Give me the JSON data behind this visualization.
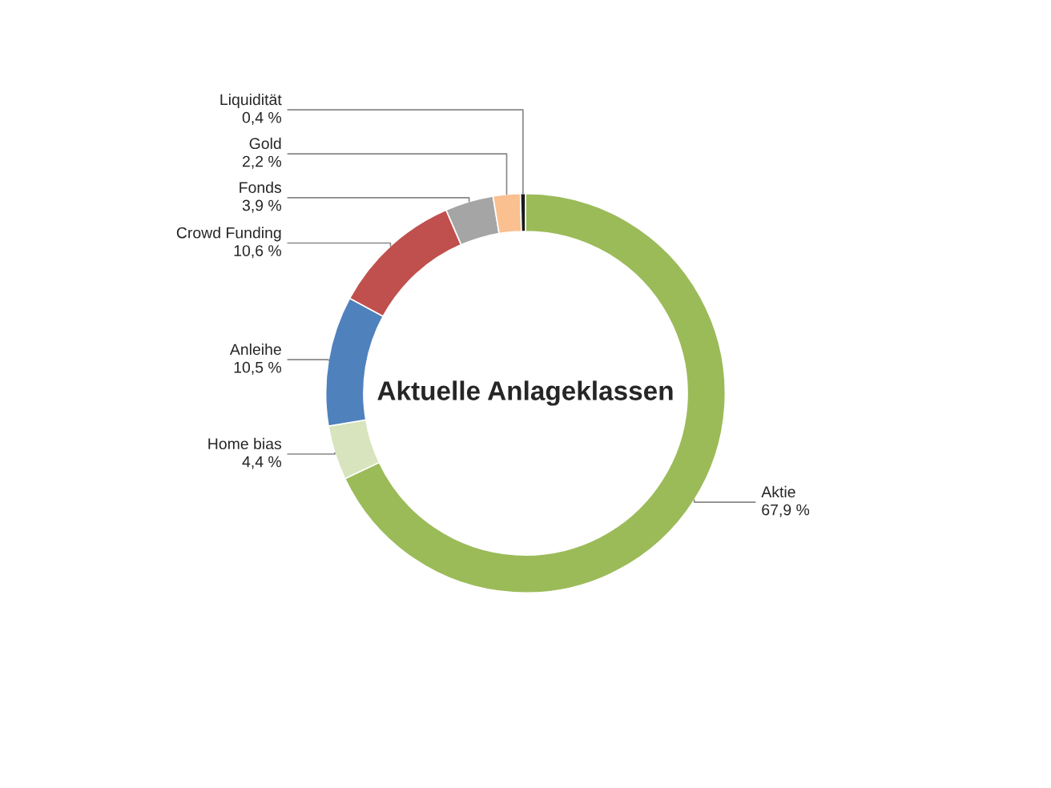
{
  "chart_data": {
    "type": "donut",
    "title": "Aktuelle Anlageklassen",
    "categories": [
      "Aktie",
      "Home bias",
      "Anleihe",
      "Crowd Funding",
      "Fonds",
      "Gold",
      "Liquidität"
    ],
    "values": [
      67.9,
      4.4,
      10.5,
      10.6,
      3.9,
      2.2,
      0.4
    ],
    "value_labels": [
      "67,9 %",
      "4,4 %",
      "10,5 %",
      "10,6 %",
      "3,9 %",
      "2,2 %",
      "0,4 %"
    ],
    "colors": [
      "#9bbb59",
      "#d7e4bd",
      "#4f81bd",
      "#c0504d",
      "#a5a5a5",
      "#fac090",
      "#1a1a1a"
    ]
  }
}
